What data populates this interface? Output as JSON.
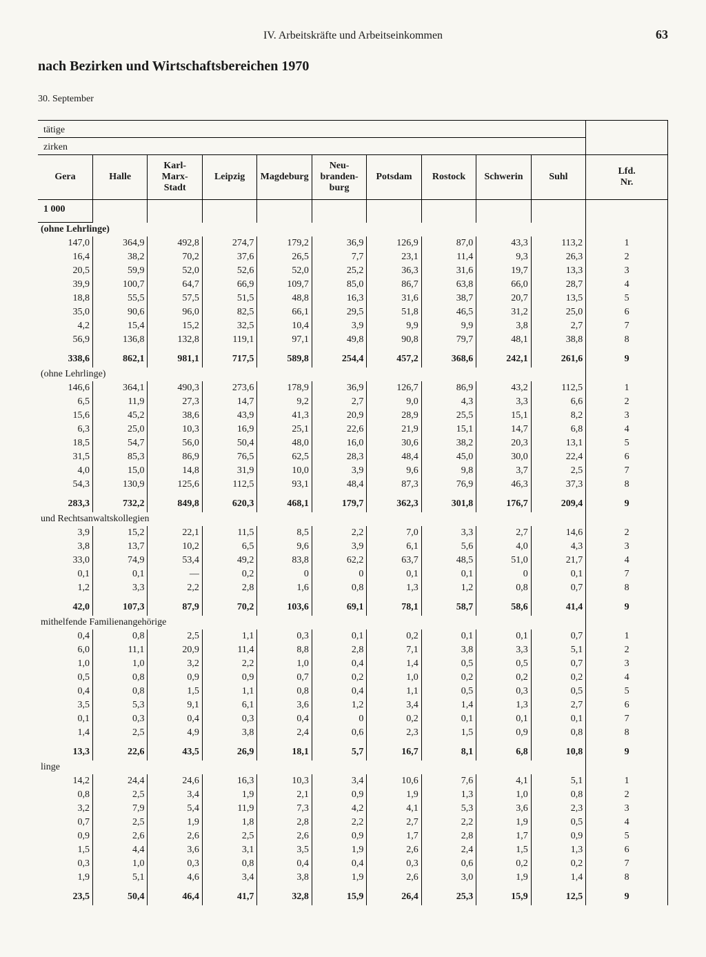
{
  "page": {
    "section_header": "IV. Arbeitskräfte und Arbeitseinkommen",
    "number": "63"
  },
  "title": "nach Bezirken und Wirtschaftsbereichen 1970",
  "subtitle": "30. September",
  "overhead": {
    "line1": "tätige",
    "line2": "zirken"
  },
  "columns": [
    "Gera",
    "Halle",
    "Karl-Marx-\nStadt",
    "Leipzig",
    "Magdeburg",
    "Neu-\nbranden-\nburg",
    "Potsdam",
    "Rostock",
    "Schwerin",
    "Suhl"
  ],
  "lfd_label": "Lfd.\nNr.",
  "unit": "1 000",
  "sections": [
    {
      "label": "(ohne Lehrlinge)",
      "label_style": "bold",
      "rows": [
        {
          "lfd": "1",
          "v": [
            "147,0",
            "364,9",
            "492,8",
            "274,7",
            "179,2",
            "36,9",
            "126,9",
            "87,0",
            "43,3",
            "113,2"
          ]
        },
        {
          "lfd": "2",
          "v": [
            "16,4",
            "38,2",
            "70,2",
            "37,6",
            "26,5",
            "7,7",
            "23,1",
            "11,4",
            "9,3",
            "26,3"
          ]
        },
        {
          "lfd": "3",
          "v": [
            "20,5",
            "59,9",
            "52,0",
            "52,6",
            "52,0",
            "25,2",
            "36,3",
            "31,6",
            "19,7",
            "13,3"
          ]
        },
        {
          "lfd": "4",
          "v": [
            "39,9",
            "100,7",
            "64,7",
            "66,9",
            "109,7",
            "85,0",
            "86,7",
            "63,8",
            "66,0",
            "28,7"
          ]
        },
        {
          "lfd": "5",
          "v": [
            "18,8",
            "55,5",
            "57,5",
            "51,5",
            "48,8",
            "16,3",
            "31,6",
            "38,7",
            "20,7",
            "13,5"
          ]
        },
        {
          "lfd": "6",
          "v": [
            "35,0",
            "90,6",
            "96,0",
            "82,5",
            "66,1",
            "29,5",
            "51,8",
            "46,5",
            "31,2",
            "25,0"
          ]
        },
        {
          "lfd": "7",
          "v": [
            "4,2",
            "15,4",
            "15,2",
            "32,5",
            "10,4",
            "3,9",
            "9,9",
            "9,9",
            "3,8",
            "2,7"
          ]
        },
        {
          "lfd": "8",
          "v": [
            "56,9",
            "136,8",
            "132,8",
            "119,1",
            "97,1",
            "49,8",
            "90,8",
            "79,7",
            "48,1",
            "38,8"
          ]
        }
      ],
      "total": {
        "lfd": "9",
        "v": [
          "338,6",
          "862,1",
          "981,1",
          "717,5",
          "589,8",
          "254,4",
          "457,2",
          "368,6",
          "242,1",
          "261,6"
        ]
      }
    },
    {
      "label": "(ohne Lehrlinge)",
      "rows": [
        {
          "lfd": "1",
          "v": [
            "146,6",
            "364,1",
            "490,3",
            "273,6",
            "178,9",
            "36,9",
            "126,7",
            "86,9",
            "43,2",
            "112,5"
          ]
        },
        {
          "lfd": "2",
          "v": [
            "6,5",
            "11,9",
            "27,3",
            "14,7",
            "9,2",
            "2,7",
            "9,0",
            "4,3",
            "3,3",
            "6,6"
          ]
        },
        {
          "lfd": "3",
          "v": [
            "15,6",
            "45,2",
            "38,6",
            "43,9",
            "41,3",
            "20,9",
            "28,9",
            "25,5",
            "15,1",
            "8,2"
          ]
        },
        {
          "lfd": "4",
          "v": [
            "6,3",
            "25,0",
            "10,3",
            "16,9",
            "25,1",
            "22,6",
            "21,9",
            "15,1",
            "14,7",
            "6,8"
          ]
        },
        {
          "lfd": "5",
          "v": [
            "18,5",
            "54,7",
            "56,0",
            "50,4",
            "48,0",
            "16,0",
            "30,6",
            "38,2",
            "20,3",
            "13,1"
          ]
        },
        {
          "lfd": "6",
          "v": [
            "31,5",
            "85,3",
            "86,9",
            "76,5",
            "62,5",
            "28,3",
            "48,4",
            "45,0",
            "30,0",
            "22,4"
          ]
        },
        {
          "lfd": "7",
          "v": [
            "4,0",
            "15,0",
            "14,8",
            "31,9",
            "10,0",
            "3,9",
            "9,6",
            "9,8",
            "3,7",
            "2,5"
          ]
        },
        {
          "lfd": "8",
          "v": [
            "54,3",
            "130,9",
            "125,6",
            "112,5",
            "93,1",
            "48,4",
            "87,3",
            "76,9",
            "46,3",
            "37,3"
          ]
        }
      ],
      "total": {
        "lfd": "9",
        "v": [
          "283,3",
          "732,2",
          "849,8",
          "620,3",
          "468,1",
          "179,7",
          "362,3",
          "301,8",
          "176,7",
          "209,4"
        ]
      }
    },
    {
      "label": "und Rechtsanwaltskollegien",
      "rows": [
        {
          "lfd": "2",
          "v": [
            "3,9",
            "15,2",
            "22,1",
            "11,5",
            "8,5",
            "2,2",
            "7,0",
            "3,3",
            "2,7",
            "14,6"
          ]
        },
        {
          "lfd": "3",
          "v": [
            "3,8",
            "13,7",
            "10,2",
            "6,5",
            "9,6",
            "3,9",
            "6,1",
            "5,6",
            "4,0",
            "4,3"
          ]
        },
        {
          "lfd": "4",
          "v": [
            "33,0",
            "74,9",
            "53,4",
            "49,2",
            "83,8",
            "62,2",
            "63,7",
            "48,5",
            "51,0",
            "21,7"
          ]
        },
        {
          "lfd": "7",
          "v": [
            "0,1",
            "0,1",
            "—",
            "0,2",
            "0",
            "0",
            "0,1",
            "0,1",
            "0",
            "0,1"
          ]
        },
        {
          "lfd": "8",
          "v": [
            "1,2",
            "3,3",
            "2,2",
            "2,8",
            "1,6",
            "0,8",
            "1,3",
            "1,2",
            "0,8",
            "0,7"
          ]
        }
      ],
      "total": {
        "lfd": "9",
        "v": [
          "42,0",
          "107,3",
          "87,9",
          "70,2",
          "103,6",
          "69,1",
          "78,1",
          "58,7",
          "58,6",
          "41,4"
        ]
      }
    },
    {
      "label": "mithelfende Familienangehörige",
      "rows": [
        {
          "lfd": "1",
          "v": [
            "0,4",
            "0,8",
            "2,5",
            "1,1",
            "0,3",
            "0,1",
            "0,2",
            "0,1",
            "0,1",
            "0,7"
          ]
        },
        {
          "lfd": "2",
          "v": [
            "6,0",
            "11,1",
            "20,9",
            "11,4",
            "8,8",
            "2,8",
            "7,1",
            "3,8",
            "3,3",
            "5,1"
          ]
        },
        {
          "lfd": "3",
          "v": [
            "1,0",
            "1,0",
            "3,2",
            "2,2",
            "1,0",
            "0,4",
            "1,4",
            "0,5",
            "0,5",
            "0,7"
          ]
        },
        {
          "lfd": "4",
          "v": [
            "0,5",
            "0,8",
            "0,9",
            "0,9",
            "0,7",
            "0,2",
            "1,0",
            "0,2",
            "0,2",
            "0,2"
          ]
        },
        {
          "lfd": "5",
          "v": [
            "0,4",
            "0,8",
            "1,5",
            "1,1",
            "0,8",
            "0,4",
            "1,1",
            "0,5",
            "0,3",
            "0,5"
          ]
        },
        {
          "lfd": "6",
          "v": [
            "3,5",
            "5,3",
            "9,1",
            "6,1",
            "3,6",
            "1,2",
            "3,4",
            "1,4",
            "1,3",
            "2,7"
          ]
        },
        {
          "lfd": "7",
          "v": [
            "0,1",
            "0,3",
            "0,4",
            "0,3",
            "0,4",
            "0",
            "0,2",
            "0,1",
            "0,1",
            "0,1"
          ]
        },
        {
          "lfd": "8",
          "v": [
            "1,4",
            "2,5",
            "4,9",
            "3,8",
            "2,4",
            "0,6",
            "2,3",
            "1,5",
            "0,9",
            "0,8"
          ]
        }
      ],
      "total": {
        "lfd": "9",
        "v": [
          "13,3",
          "22,6",
          "43,5",
          "26,9",
          "18,1",
          "5,7",
          "16,7",
          "8,1",
          "6,8",
          "10,8"
        ]
      }
    },
    {
      "label": "linge",
      "rows": [
        {
          "lfd": "1",
          "v": [
            "14,2",
            "24,4",
            "24,6",
            "16,3",
            "10,3",
            "3,4",
            "10,6",
            "7,6",
            "4,1",
            "5,1"
          ]
        },
        {
          "lfd": "2",
          "v": [
            "0,8",
            "2,5",
            "3,4",
            "1,9",
            "2,1",
            "0,9",
            "1,9",
            "1,3",
            "1,0",
            "0,8"
          ]
        },
        {
          "lfd": "3",
          "v": [
            "3,2",
            "7,9",
            "5,4",
            "11,9",
            "7,3",
            "4,2",
            "4,1",
            "5,3",
            "3,6",
            "2,3"
          ]
        },
        {
          "lfd": "4",
          "v": [
            "0,7",
            "2,5",
            "1,9",
            "1,8",
            "2,8",
            "2,2",
            "2,7",
            "2,2",
            "1,9",
            "0,5"
          ]
        },
        {
          "lfd": "5",
          "v": [
            "0,9",
            "2,6",
            "2,6",
            "2,5",
            "2,6",
            "0,9",
            "1,7",
            "2,8",
            "1,7",
            "0,9"
          ]
        },
        {
          "lfd": "6",
          "v": [
            "1,5",
            "4,4",
            "3,6",
            "3,1",
            "3,5",
            "1,9",
            "2,6",
            "2,4",
            "1,5",
            "1,3"
          ]
        },
        {
          "lfd": "7",
          "v": [
            "0,3",
            "1,0",
            "0,3",
            "0,8",
            "0,4",
            "0,4",
            "0,3",
            "0,6",
            "0,2",
            "0,2"
          ]
        },
        {
          "lfd": "8",
          "v": [
            "1,9",
            "5,1",
            "4,6",
            "3,4",
            "3,8",
            "1,9",
            "2,6",
            "3,0",
            "1,9",
            "1,4"
          ]
        }
      ],
      "total": {
        "lfd": "9",
        "v": [
          "23,5",
          "50,4",
          "46,4",
          "41,7",
          "32,8",
          "15,9",
          "26,4",
          "25,3",
          "15,9",
          "12,5"
        ]
      }
    }
  ]
}
